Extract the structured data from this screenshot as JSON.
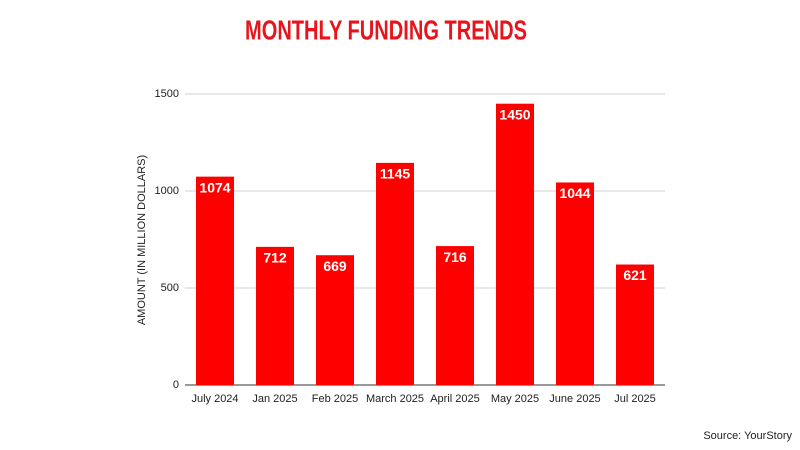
{
  "chart_data": {
    "type": "bar",
    "title": "MONTHLY FUNDING TRENDS",
    "y_label": "AMOUNT (IN MILLION DOLLARS)",
    "source": "Source: YourStory",
    "categories": [
      "July 2024",
      "Jan 2025",
      "Feb 2025",
      "March 2025",
      "April 2025",
      "May 2025",
      "June 2025",
      "Jul 2025"
    ],
    "values": [
      1074,
      712,
      669,
      1145,
      716,
      1450,
      1044,
      621
    ],
    "color": "#ff0000",
    "ylim": [
      0,
      1500
    ],
    "yticks": [
      0,
      500,
      1000,
      1500
    ],
    "grid": true
  }
}
